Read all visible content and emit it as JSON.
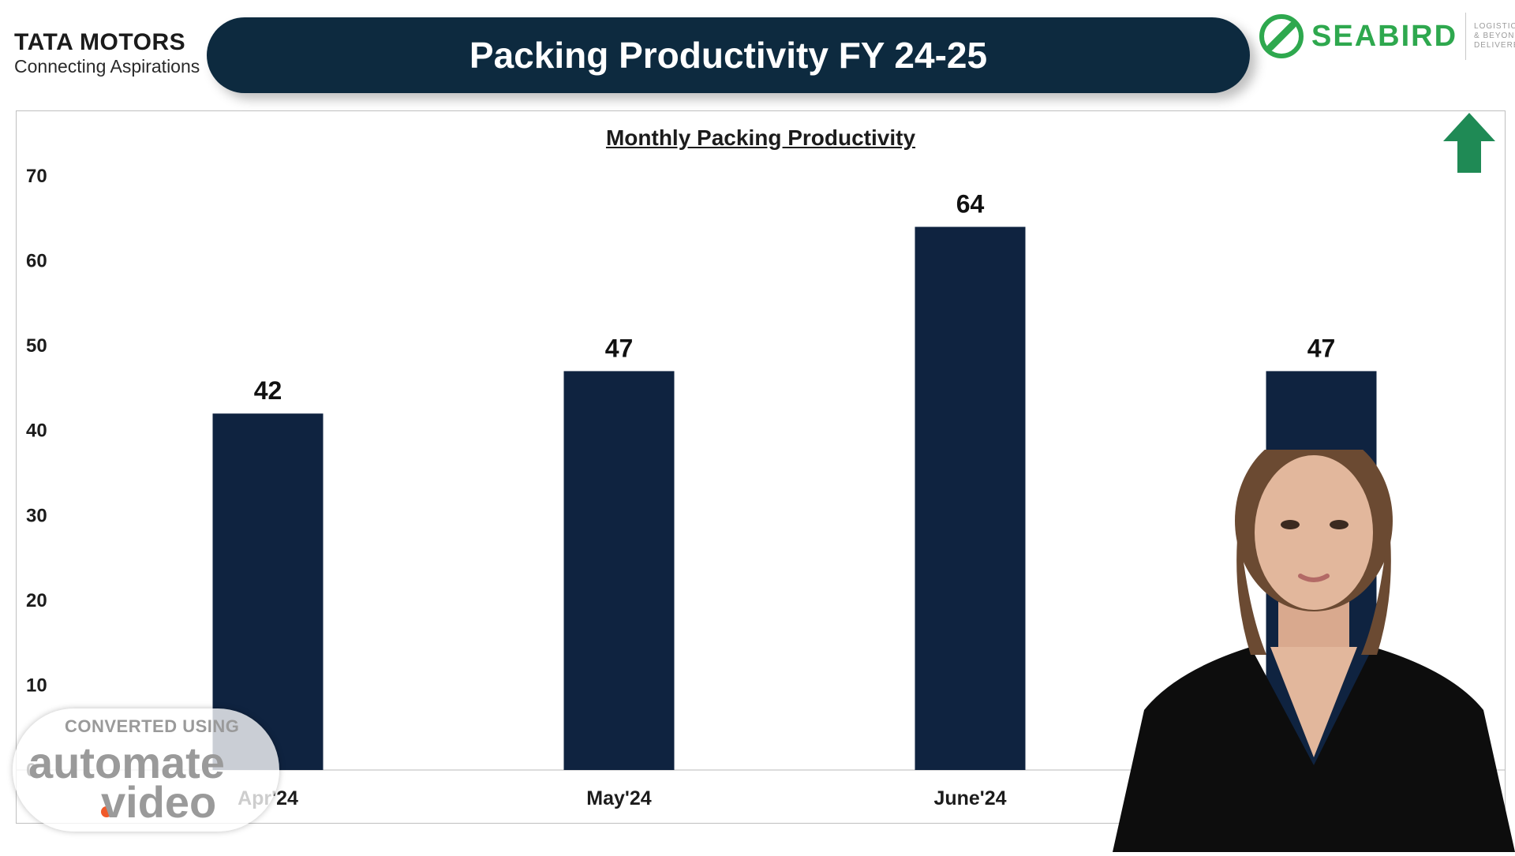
{
  "header": {
    "left_logo_brand": "TATA MOTORS",
    "left_logo_tagline": "Connecting Aspirations",
    "title": "Packing Productivity FY 24-25",
    "right_logo_name": "SEABIRD",
    "right_logo_tagline_1": "LOGISTICS",
    "right_logo_tagline_2": "& BEYOND.",
    "right_logo_tagline_3": "DELIVERED."
  },
  "watermark": {
    "line1": "CONVERTED USING",
    "line2": "automate",
    "line3": "video"
  },
  "trend_icon": "up-arrow-icon",
  "colors": {
    "bar": "#0f2340",
    "title_bar": "#0d2a3f",
    "arrow": "#1f8a55",
    "brand_green": "#2ea84e"
  },
  "chart_data": {
    "type": "bar",
    "title": "Monthly  Packing Productivity",
    "categories": [
      "Apr'24",
      "May'24",
      "June'24",
      ""
    ],
    "values": [
      42,
      47,
      64,
      47
    ],
    "ylim": [
      0,
      70
    ],
    "yticks": [
      0,
      10,
      20,
      30,
      40,
      50,
      60,
      70
    ],
    "grid": false,
    "data_labels": true
  }
}
